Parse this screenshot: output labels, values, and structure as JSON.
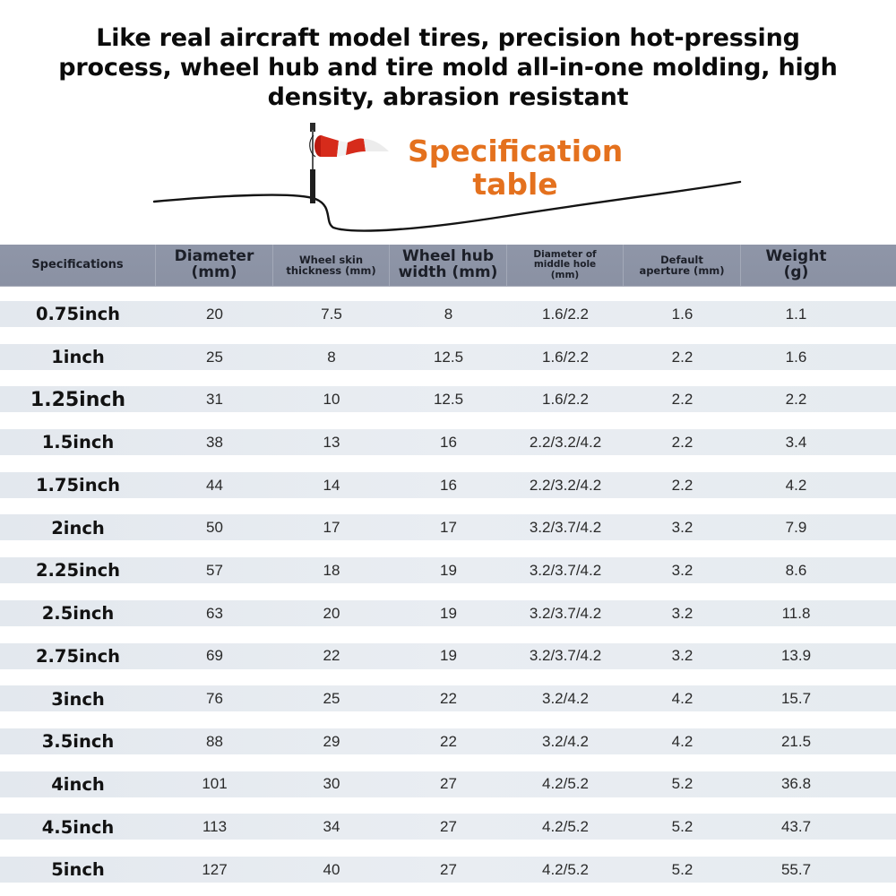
{
  "headline": {
    "line1": "Like real aircraft model tires, precision hot-pressing",
    "line2": "process, wheel hub and tire mold all-in-one molding, high",
    "line3": "density, abrasion resistant"
  },
  "section_title": {
    "line1": "Specification",
    "line2": "table",
    "color": "#e4711e"
  },
  "decor": {
    "icon": "windsock-icon",
    "accent_red": "#d62b1b"
  },
  "table": {
    "header_bg": "#8e95a7",
    "row_band_bg": "#e6ebf0",
    "columns": [
      "Specifications",
      "Diameter\n(mm)",
      "Wheel skin thickness (mm)",
      "Wheel hub width (mm)",
      "Diameter of middle hole (mm)",
      "Default aperture (mm)",
      "Weight\n(g)"
    ],
    "header_lines": {
      "c0": [
        "Specifications"
      ],
      "c1": [
        "Diameter",
        "(mm)"
      ],
      "c2": [
        "Wheel skin",
        "thickness (mm)"
      ],
      "c3": [
        "Wheel hub",
        "width (mm)"
      ],
      "c4": [
        "Diameter of",
        "middle hole",
        "(mm)"
      ],
      "c5": [
        "Default",
        "aperture (mm)"
      ],
      "c6": [
        "Weight",
        "(g)"
      ]
    },
    "rows": [
      [
        "0.75inch",
        "20",
        "7.5",
        "8",
        "1.6/2.2",
        "1.6",
        "1.1"
      ],
      [
        "1inch",
        "25",
        "8",
        "12.5",
        "1.6/2.2",
        "2.2",
        "1.6"
      ],
      [
        "1.25inch",
        "31",
        "10",
        "12.5",
        "1.6/2.2",
        "2.2",
        "2.2"
      ],
      [
        "1.5inch",
        "38",
        "13",
        "16",
        "2.2/3.2/4.2",
        "2.2",
        "3.4"
      ],
      [
        "1.75inch",
        "44",
        "14",
        "16",
        "2.2/3.2/4.2",
        "2.2",
        "4.2"
      ],
      [
        "2inch",
        "50",
        "17",
        "17",
        "3.2/3.7/4.2",
        "3.2",
        "7.9"
      ],
      [
        "2.25inch",
        "57",
        "18",
        "19",
        "3.2/3.7/4.2",
        "3.2",
        "8.6"
      ],
      [
        "2.5inch",
        "63",
        "20",
        "19",
        "3.2/3.7/4.2",
        "3.2",
        "11.8"
      ],
      [
        "2.75inch",
        "69",
        "22",
        "19",
        "3.2/3.7/4.2",
        "3.2",
        "13.9"
      ],
      [
        "3inch",
        "76",
        "25",
        "22",
        "3.2/4.2",
        "4.2",
        "15.7"
      ],
      [
        "3.5inch",
        "88",
        "29",
        "22",
        "3.2/4.2",
        "4.2",
        "21.5"
      ],
      [
        "4inch",
        "101",
        "30",
        "27",
        "4.2/5.2",
        "5.2",
        "36.8"
      ],
      [
        "4.5inch",
        "113",
        "34",
        "27",
        "4.2/5.2",
        "5.2",
        "43.7"
      ],
      [
        "5inch",
        "127",
        "40",
        "27",
        "4.2/5.2",
        "5.2",
        "55.7"
      ]
    ]
  }
}
